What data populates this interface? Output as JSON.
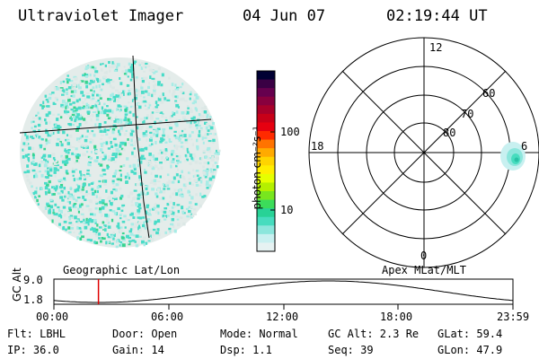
{
  "header": {
    "title": "Ultraviolet Imager",
    "date": "04 Jun 07",
    "time": "02:19:44 UT"
  },
  "colorbar": {
    "unit_label": "photon cm⁻²s⁻¹",
    "ticks": [
      "100",
      "10"
    ],
    "colors": [
      "#000033",
      "#3a0044",
      "#66004e",
      "#88003e",
      "#a8002a",
      "#c80018",
      "#e60010",
      "#ff2a00",
      "#ff7300",
      "#ffaa00",
      "#ffd400",
      "#ffee00",
      "#e6ff00",
      "#b4f000",
      "#78e61e",
      "#3cdc5a",
      "#28d296",
      "#46dcbe",
      "#8ce6dc",
      "#c8f0f0",
      "#e6f2f2"
    ]
  },
  "polar": {
    "lat_labels": [
      "60",
      "70",
      "80"
    ],
    "mlt_labels": {
      "top": "12",
      "left": "18",
      "right": "6",
      "bottom": "0"
    }
  },
  "timeline": {
    "left_label": "Geographic Lat/Lon",
    "right_label": "Apex MLat/MLT",
    "ylabel": "GC Alt",
    "ymax": "9.0",
    "ymin": "1.8",
    "xticks": [
      "00:00",
      "06:00",
      "12:00",
      "18:00",
      "23:59"
    ],
    "marker_time_hours": 2.33
  },
  "info": {
    "flt": "Flt: LBHL",
    "ip": "IP: 36.0",
    "door": "Door: Open",
    "gain": "Gain: 14",
    "mode": "Mode: Normal",
    "dsp": "Dsp:    1.1",
    "gcalt": "GC Alt: 2.3 Re",
    "seq": "Seq: 39",
    "glat": "GLat:  59.4",
    "glon": "GLon:  47.9"
  },
  "accent": {
    "marker": "#e00000",
    "speckle_main": "#48dcc8",
    "speckle_light": "#a8ece6",
    "speckle_pale": "#dce8e6",
    "speckle_green": "#38d490"
  }
}
